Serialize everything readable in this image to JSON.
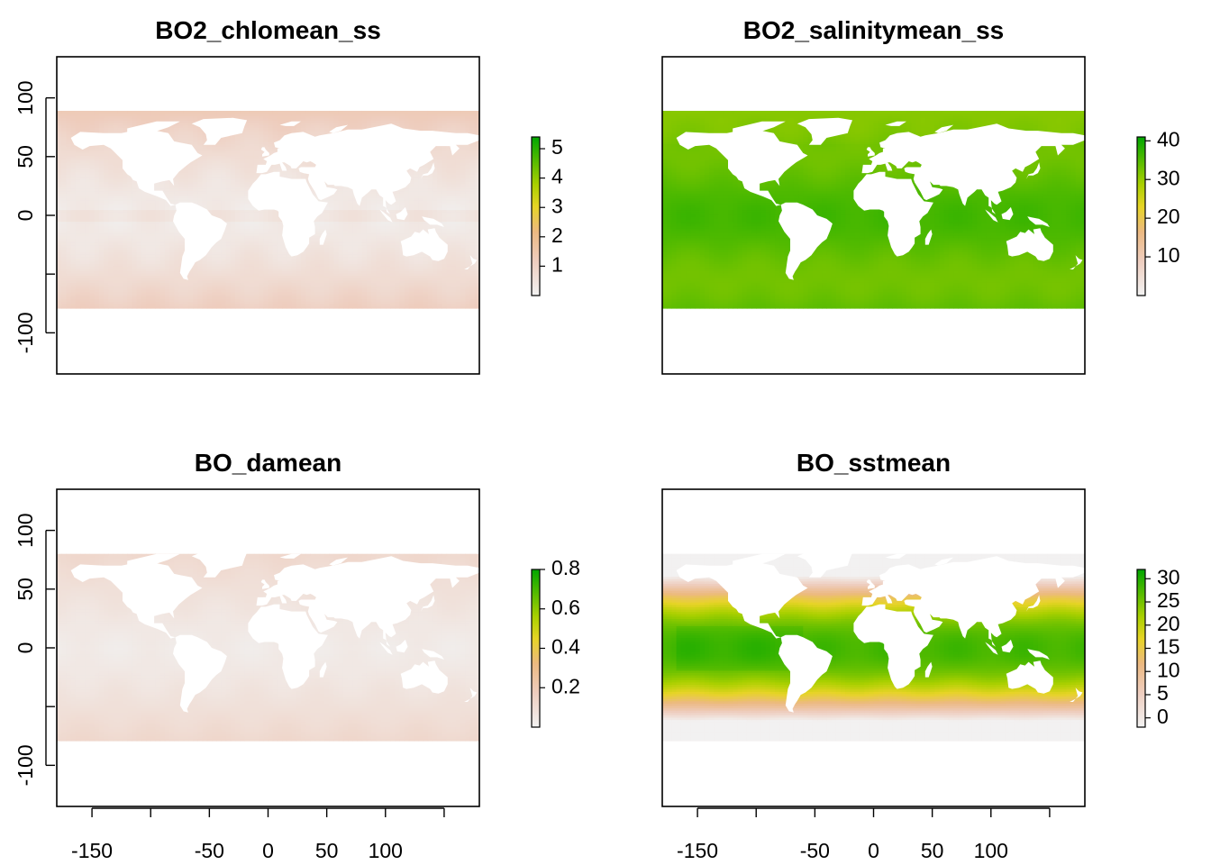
{
  "chart_data": [
    {
      "type": "heatmap",
      "title": "BO2_chlomean_ss",
      "xlabel": "",
      "ylabel": "",
      "xlim": [
        -180,
        180
      ],
      "ylim": [
        -135,
        135
      ],
      "data_lat_range": [
        -79,
        89
      ],
      "yticks": [
        100,
        50,
        0,
        -50,
        -100
      ],
      "ytick_labels": [
        "100",
        "50",
        "0",
        "",
        "-100"
      ],
      "xticks": [],
      "xtick_labels": [],
      "legend": {
        "ticks": [
          1,
          2,
          3,
          4,
          5
        ],
        "labels": [
          "1",
          "2",
          "3",
          "4",
          "5"
        ],
        "range": [
          0,
          5.4
        ]
      },
      "colormap": "terrain-reversed",
      "pattern": "chlorophyll",
      "grid": false
    },
    {
      "type": "heatmap",
      "title": "BO2_salinitymean_ss",
      "xlabel": "",
      "ylabel": "",
      "xlim": [
        -180,
        180
      ],
      "ylim": [
        -135,
        135
      ],
      "data_lat_range": [
        -79,
        89
      ],
      "yticks": [],
      "ytick_labels": [],
      "xticks": [],
      "xtick_labels": [],
      "legend": {
        "ticks": [
          10,
          20,
          30,
          40
        ],
        "labels": [
          "10",
          "20",
          "30",
          "40"
        ],
        "range": [
          0,
          41
        ]
      },
      "colormap": "terrain-reversed",
      "pattern": "salinity",
      "grid": false
    },
    {
      "type": "heatmap",
      "title": "BO_damean",
      "xlabel": "",
      "ylabel": "",
      "xlim": [
        -180,
        180
      ],
      "ylim": [
        -135,
        135
      ],
      "data_lat_range": [
        -79,
        80
      ],
      "yticks": [
        100,
        50,
        0,
        -50,
        -100
      ],
      "ytick_labels": [
        "100",
        "50",
        "0",
        "",
        "-100"
      ],
      "xticks": [
        -150,
        -100,
        -50,
        0,
        50,
        100,
        150
      ],
      "xtick_labels": [
        "-150",
        "",
        "-50",
        "0",
        "50",
        "100",
        ""
      ],
      "legend": {
        "ticks": [
          0.2,
          0.4,
          0.6,
          0.8
        ],
        "labels": [
          "0.2",
          "0.4",
          "0.6",
          "0.8"
        ],
        "range": [
          0,
          0.8
        ]
      },
      "colormap": "terrain-reversed",
      "pattern": "attenuation",
      "grid": false
    },
    {
      "type": "heatmap",
      "title": "BO_sstmean",
      "xlabel": "",
      "ylabel": "",
      "xlim": [
        -180,
        180
      ],
      "ylim": [
        -135,
        135
      ],
      "data_lat_range": [
        -79,
        80
      ],
      "yticks": [],
      "ytick_labels": [],
      "xticks": [
        -150,
        -100,
        -50,
        0,
        50,
        100,
        150
      ],
      "xtick_labels": [
        "-150",
        "",
        "-50",
        "0",
        "50",
        "100",
        ""
      ],
      "legend": {
        "ticks": [
          0,
          5,
          10,
          15,
          20,
          25,
          30
        ],
        "labels": [
          "0",
          "5",
          "10",
          "15",
          "20",
          "25",
          "30"
        ],
        "range": [
          -2,
          32
        ]
      },
      "colormap": "terrain-reversed",
      "pattern": "sst",
      "grid": false
    }
  ]
}
